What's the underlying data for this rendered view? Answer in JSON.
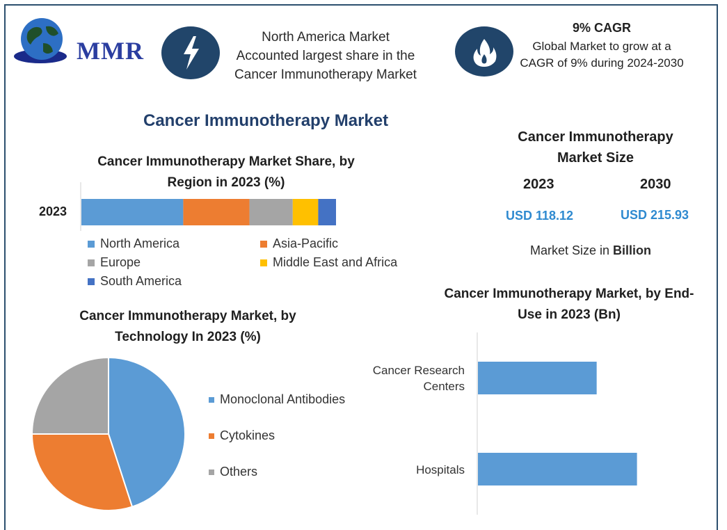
{
  "logo": {
    "text": "MMR"
  },
  "highlight1": {
    "icon": "lightning-icon",
    "lines": [
      "North America Market",
      "Accounted largest share in the",
      "Cancer Immunotherapy Market"
    ]
  },
  "highlight2": {
    "icon": "flame-icon",
    "title": "9% CAGR",
    "lines": [
      "Global Market to grow at a",
      "CAGR of 9% during 2024-2030"
    ]
  },
  "main_title": "Cancer Immunotherapy Market",
  "market_size": {
    "title_lines": [
      "Cancer Immunotherapy",
      "Market Size"
    ],
    "years": [
      "2023",
      "2030"
    ],
    "values": [
      "USD 118.12",
      "USD 215.93"
    ],
    "note_prefix": "Market Size in ",
    "note_bold": "Billion"
  },
  "colors": {
    "frame": "#2c4f6e",
    "north_america": "#5b9bd5",
    "asia_pacific": "#ed7d31",
    "europe": "#a5a5a5",
    "mea": "#ffc000",
    "south_america": "#4472c4",
    "value_text": "#2f8ad0",
    "title": "#223f6b"
  },
  "chart_data": [
    {
      "type": "bar",
      "orientation": "horizontal-stacked",
      "title_lines": [
        "Cancer Immunotherapy Market Share, by",
        "Region in 2023 (%)"
      ],
      "categories": [
        "2023"
      ],
      "series": [
        {
          "name": "North America",
          "values": [
            40
          ],
          "color": "#5b9bd5"
        },
        {
          "name": "Asia-Pacific",
          "values": [
            26
          ],
          "color": "#ed7d31"
        },
        {
          "name": "Europe",
          "values": [
            17
          ],
          "color": "#a5a5a5"
        },
        {
          "name": "Middle East and Africa",
          "values": [
            10
          ],
          "color": "#ffc000"
        },
        {
          "name": "South America",
          "values": [
            7
          ],
          "color": "#4472c4"
        }
      ],
      "legend_order": [
        "North America",
        "Asia-Pacific",
        "Europe",
        "Middle East and Africa",
        "South America"
      ]
    },
    {
      "type": "pie",
      "title_lines": [
        "Cancer Immunotherapy Market, by",
        "Technology In 2023 (%)"
      ],
      "series": [
        {
          "name": "Monoclonal Antibodies",
          "value": 45,
          "color": "#5b9bd5"
        },
        {
          "name": "Cytokines",
          "value": 30,
          "color": "#ed7d31"
        },
        {
          "name": "Others",
          "value": 25,
          "color": "#a5a5a5"
        }
      ]
    },
    {
      "type": "bar",
      "orientation": "horizontal",
      "title_lines": [
        "Cancer Immunotherapy Market, by End-",
        "Use in 2023 (Bn)"
      ],
      "categories": [
        [
          "Cancer Research",
          "Centers"
        ],
        [
          "Hospitals"
        ]
      ],
      "values": [
        53,
        71
      ],
      "xlim": [
        0,
        100
      ],
      "color": "#5b9bd5"
    }
  ]
}
